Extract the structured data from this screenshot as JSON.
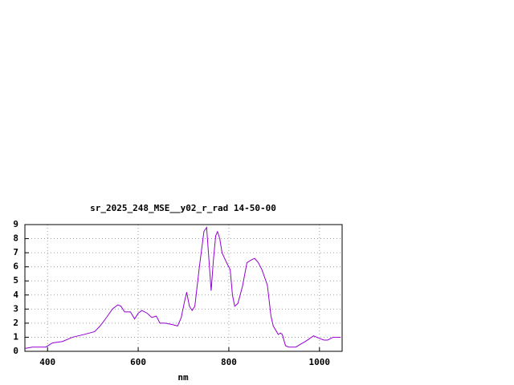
{
  "chart_data": {
    "type": "line",
    "title": "sr_2025_248_MSE__y02_r_rad 14-50-00",
    "x_label": "nm",
    "x": [
      350,
      366,
      396,
      411,
      433,
      455,
      481,
      504,
      516,
      530,
      543,
      555,
      562,
      570,
      583,
      592,
      600,
      608,
      620,
      630,
      640,
      648,
      660,
      675,
      687,
      695,
      702,
      707,
      713,
      719,
      725,
      735,
      745,
      751,
      755,
      761,
      766,
      771,
      775,
      780,
      785,
      795,
      803,
      808,
      813,
      820,
      830,
      840,
      850,
      857,
      865,
      873,
      885,
      893,
      898,
      909,
      914,
      918,
      925,
      932,
      948,
      958,
      969,
      978,
      987,
      1001,
      1010,
      1018,
      1030,
      1047
    ],
    "series": [
      {
        "color": "#9400d3",
        "values": [
          0.2,
          0.3,
          0.3,
          0.6,
          0.7,
          1.0,
          1.2,
          1.4,
          1.8,
          2.4,
          3.0,
          3.3,
          3.2,
          2.8,
          2.8,
          2.3,
          2.7,
          2.9,
          2.7,
          2.4,
          2.5,
          2.0,
          2.0,
          1.9,
          1.8,
          2.4,
          3.5,
          4.2,
          3.2,
          2.9,
          3.2,
          6.0,
          8.5,
          8.8,
          7.0,
          4.3,
          6.5,
          8.2,
          8.5,
          8.0,
          7.0,
          6.3,
          5.8,
          4.0,
          3.2,
          3.4,
          4.6,
          6.3,
          6.5,
          6.6,
          6.3,
          5.8,
          4.7,
          2.5,
          1.8,
          1.2,
          1.3,
          1.2,
          0.4,
          0.3,
          0.3,
          0.5,
          0.7,
          0.9,
          1.1,
          0.9,
          0.8,
          0.8,
          1.0,
          1.0
        ]
      }
    ],
    "xlim": [
      350,
      1050
    ],
    "xticks": [
      400,
      600,
      800,
      1000
    ],
    "ylim": [
      0,
      9
    ],
    "yticks": [
      0,
      1,
      2,
      3,
      4,
      5,
      6,
      7,
      8,
      9
    ],
    "grid": true
  }
}
